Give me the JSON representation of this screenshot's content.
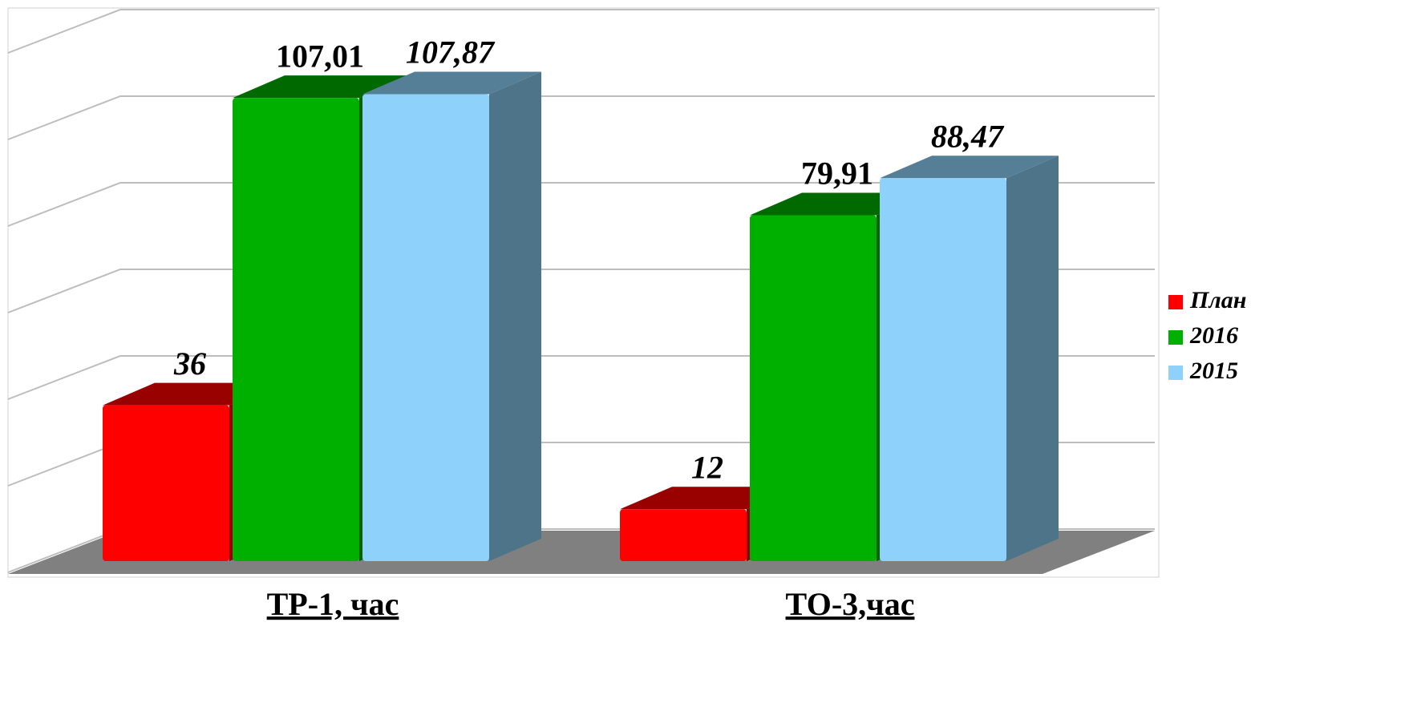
{
  "chart_data": {
    "type": "bar3d",
    "categories": [
      "ТР-1, час",
      "ТО-3,час"
    ],
    "series": [
      {
        "name": "План",
        "color": "#ff0000",
        "values": [
          36,
          12
        ],
        "value_labels": [
          "36",
          "12"
        ],
        "italic": true
      },
      {
        "name": "2016",
        "color": "#00b000",
        "values": [
          107.01,
          79.91
        ],
        "value_labels": [
          "107,01",
          "79,91"
        ],
        "italic": false
      },
      {
        "name": "2015",
        "color": "#8ed2fb",
        "values": [
          107.87,
          88.47
        ],
        "value_labels": [
          "107,87",
          "88,47"
        ],
        "italic": true
      }
    ],
    "ylim": [
      0,
      120
    ],
    "yticks": [
      0,
      20,
      40,
      60,
      80,
      100,
      120
    ],
    "grid": true,
    "legend": "right"
  }
}
